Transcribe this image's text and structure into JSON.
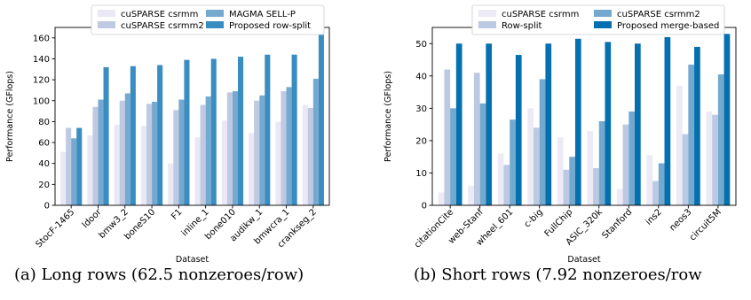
{
  "captions": {
    "a": "(a) Long rows (62.5 nonzeroes/row)",
    "b": "(b) Short rows (7.92 nonzeroes/row"
  },
  "chart_data": [
    {
      "type": "bar",
      "id": "long",
      "xlabel": "Dataset",
      "ylabel": "Performance (GFlops)",
      "ylim": [
        0,
        170
      ],
      "yticks": [
        0,
        20,
        40,
        60,
        80,
        100,
        120,
        140,
        160
      ],
      "grid": false,
      "legend_placement": "top",
      "categories": [
        "StocF-1465",
        "ldoor",
        "bmw3_2",
        "boneS10",
        "F1",
        "inline_1",
        "bone010",
        "audikw_1",
        "bmwcra_1",
        "crankseg_2"
      ],
      "series": [
        {
          "name": "cuSPARSE csrmm",
          "color": "#eae8f4",
          "values": [
            51,
            67,
            77,
            76,
            40,
            65,
            81,
            69,
            80,
            96
          ]
        },
        {
          "name": "cuSPARSE csrmm2",
          "color": "#bfc9e1",
          "values": [
            74,
            94,
            100,
            97,
            91,
            96,
            108,
            100,
            109,
            93
          ]
        },
        {
          "name": "MAGMA SELL-P",
          "color": "#76a9cf",
          "values": [
            64,
            101,
            107,
            99,
            101,
            104,
            109,
            105,
            113,
            121
          ]
        },
        {
          "name": "Proposed row-split",
          "color": "#3a8dc0",
          "values": [
            74,
            132,
            133,
            134,
            139,
            140,
            142,
            144,
            144,
            163
          ]
        }
      ]
    },
    {
      "type": "bar",
      "id": "short",
      "xlabel": "Dataset",
      "ylabel": "Performance (GFlops)",
      "ylim": [
        0,
        55
      ],
      "yticks": [
        0,
        10,
        20,
        30,
        40,
        50
      ],
      "grid": false,
      "legend_placement": "top",
      "categories": [
        "citationCite",
        "web-Stanf",
        "wheel_601",
        "c-big",
        "FullChip",
        "ASIC_320k",
        "Stanford",
        "ins2",
        "neos3",
        "circuit5M"
      ],
      "series": [
        {
          "name": "cuSPARSE csrmm",
          "color": "#eceaf5",
          "values": [
            4,
            6,
            16,
            30,
            21,
            23,
            5,
            15.5,
            37,
            29
          ]
        },
        {
          "name": "Row-split",
          "color": "#bcc9e2",
          "values": [
            42,
            41,
            12.5,
            24,
            11,
            11.5,
            25,
            7.5,
            22,
            28
          ]
        },
        {
          "name": "cuSPARSE csrmm2",
          "color": "#74a9cf",
          "values": [
            30,
            31.5,
            26.5,
            39,
            15,
            26,
            29,
            13,
            43.5,
            40.5
          ]
        },
        {
          "name": "Proposed merge-based",
          "color": "#0570b0",
          "values": [
            50,
            50,
            46.5,
            50,
            51.5,
            50.5,
            50,
            52,
            49,
            53
          ]
        }
      ]
    }
  ]
}
